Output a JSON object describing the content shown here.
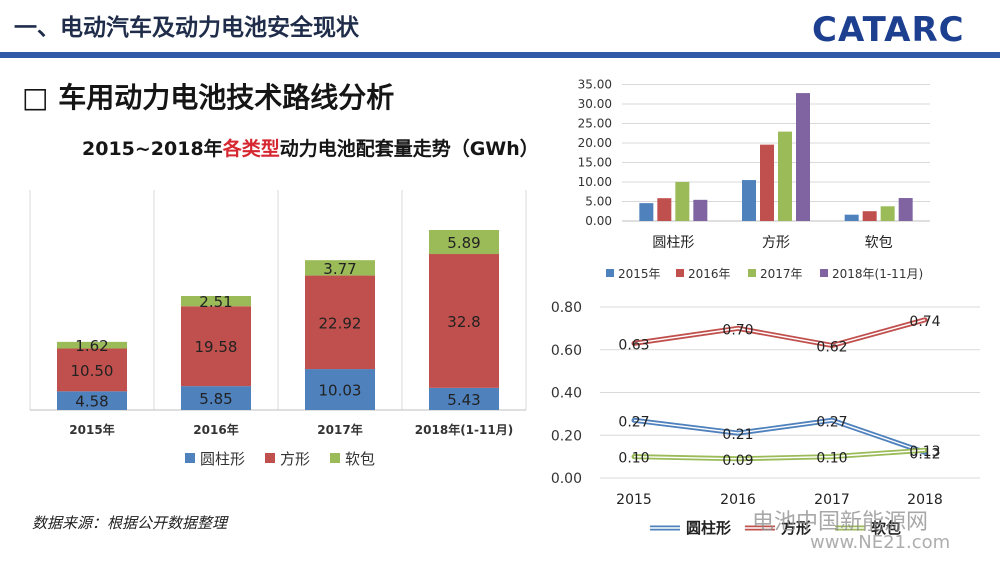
{
  "header": {
    "title": "一、电动汽车及动力电池安全现状",
    "logo_text": "CATARC"
  },
  "section_title": "□ 车用动力电池技术路线分析",
  "chart_title": {
    "part1": "2015~2018年",
    "highlight": "各类型",
    "part2": "动力电池配套量走势（GWh）"
  },
  "source_note": "数据来源：根据公开数据整理",
  "watermark": {
    "text": "电池中国新能源网",
    "url": "www.NE21.com"
  },
  "colors": {
    "cylindrical": "#4f81bd",
    "prismatic": "#c0504d",
    "pouch": "#9bbb59",
    "series_2018": "#8064a2",
    "grid": "#d9d9d9",
    "header_rule": "#2f5aa8"
  },
  "chart_data": [
    {
      "type": "bar",
      "stacked": true,
      "categories": [
        "2015年",
        "2016年",
        "2017年",
        "2018年(1-11月)"
      ],
      "series": [
        {
          "name": "圆柱形",
          "values": [
            4.58,
            5.85,
            10.03,
            5.43
          ],
          "labels": [
            "4.58",
            "5.85",
            "10.03",
            "5.43"
          ]
        },
        {
          "name": "方形",
          "values": [
            10.5,
            19.58,
            22.92,
            32.8
          ],
          "labels": [
            "10.50",
            "19.58",
            "22.92",
            "32.8"
          ]
        },
        {
          "name": "软包",
          "values": [
            1.62,
            2.51,
            3.77,
            5.89
          ],
          "labels": [
            "1.62",
            "2.51",
            "3.77",
            "5.89"
          ]
        }
      ],
      "legend": [
        "圆柱形",
        "方形",
        "软包"
      ],
      "legend_position": "bottom",
      "grid": true
    },
    {
      "type": "bar",
      "categories": [
        "圆柱形",
        "方形",
        "软包"
      ],
      "series": [
        {
          "name": "2015年",
          "values": [
            4.58,
            10.5,
            1.62
          ]
        },
        {
          "name": "2016年",
          "values": [
            5.85,
            19.58,
            2.51
          ]
        },
        {
          "name": "2017年",
          "values": [
            10.03,
            22.92,
            3.77
          ]
        },
        {
          "name": "2018年(1-11月)",
          "values": [
            5.43,
            32.8,
            5.89
          ]
        }
      ],
      "ylim": [
        0,
        35
      ],
      "yticks": [
        "0.00",
        "5.00",
        "10.00",
        "15.00",
        "20.00",
        "25.00",
        "30.00",
        "35.00"
      ],
      "legend_position": "bottom",
      "grid": true
    },
    {
      "type": "line",
      "x": [
        "2015",
        "2016",
        "2017",
        "2018"
      ],
      "series": [
        {
          "name": "圆柱形",
          "values": [
            0.27,
            0.21,
            0.27,
            0.12
          ],
          "labels": [
            "0.27",
            "0.21",
            "0.27",
            "0.12"
          ]
        },
        {
          "name": "方形",
          "values": [
            0.63,
            0.7,
            0.62,
            0.74
          ],
          "labels": [
            "0.63",
            "0.70",
            "0.62",
            "0.74"
          ]
        },
        {
          "name": "软包",
          "values": [
            0.1,
            0.09,
            0.1,
            0.13
          ],
          "labels": [
            "0.10",
            "0.09",
            "0.10",
            "0.13"
          ]
        }
      ],
      "ylim": [
        0,
        0.8
      ],
      "yticks": [
        "0.00",
        "0.20",
        "0.40",
        "0.60",
        "0.80"
      ],
      "legend_position": "bottom",
      "grid": true
    }
  ]
}
